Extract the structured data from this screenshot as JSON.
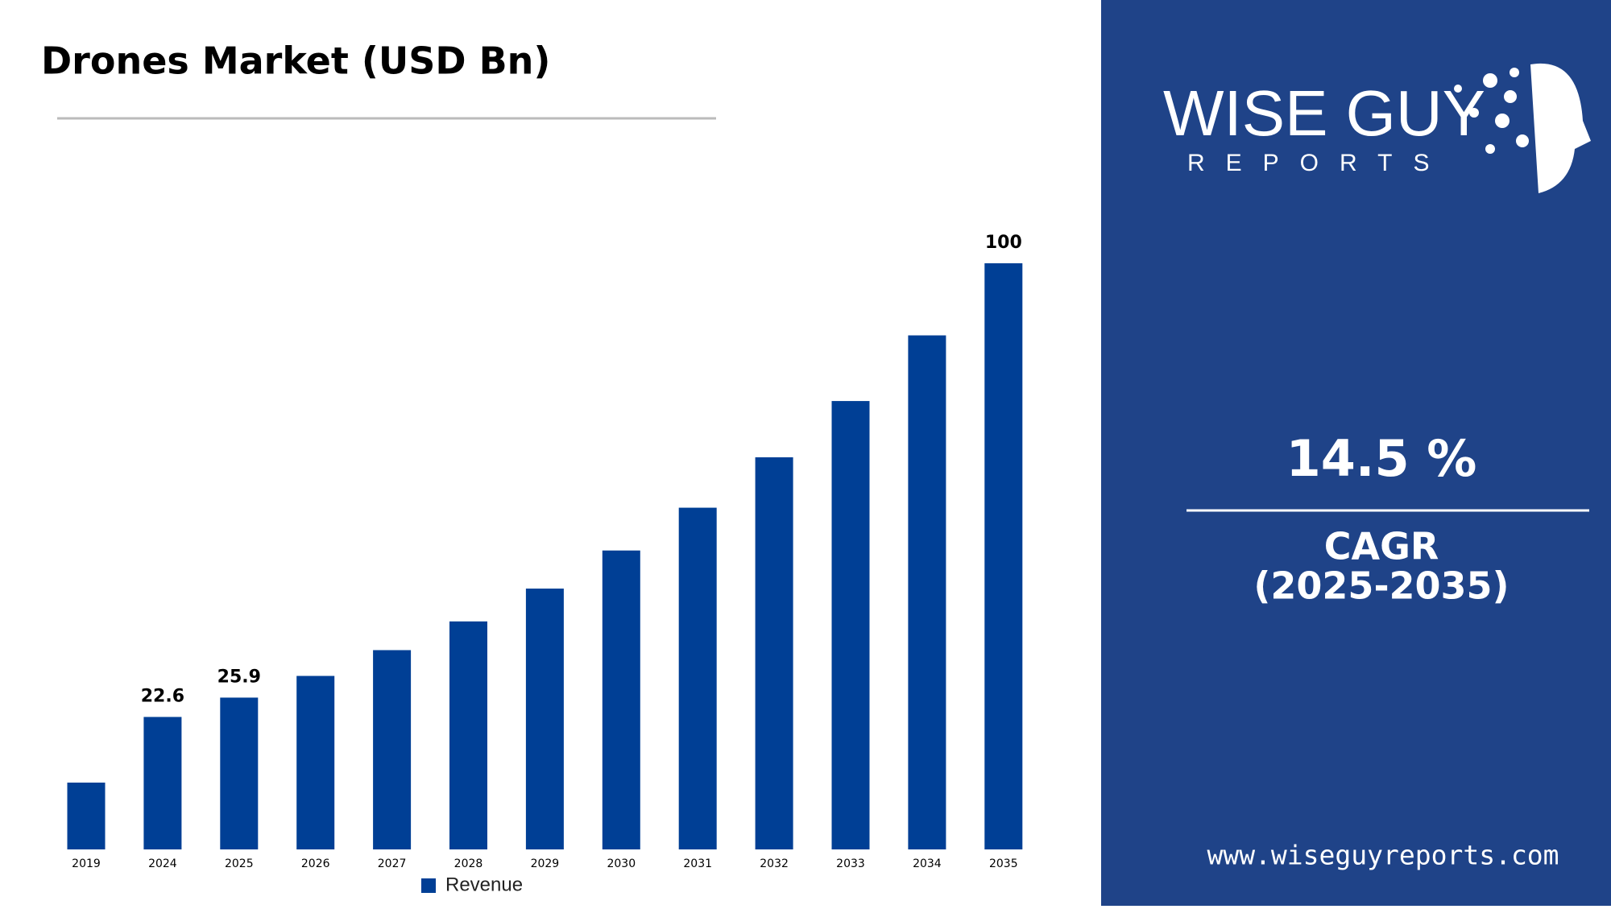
{
  "chart_data": {
    "type": "bar",
    "title": "Drones Market (USD Bn)",
    "categories": [
      "2019",
      "2024",
      "2025",
      "2026",
      "2027",
      "2028",
      "2029",
      "2030",
      "2031",
      "2032",
      "2033",
      "2034",
      "2035"
    ],
    "series": [
      {
        "name": "Revenue",
        "color": "#003f95",
        "values": [
          11.4,
          22.6,
          25.9,
          29.6,
          34.0,
          38.9,
          44.5,
          51.0,
          58.3,
          66.9,
          76.5,
          87.7,
          100
        ],
        "value_labels": [
          null,
          "22.6",
          "25.9",
          null,
          null,
          null,
          null,
          null,
          null,
          null,
          null,
          null,
          "100"
        ]
      }
    ]
  },
  "brand": {
    "name": "WISE GUY",
    "tagline": "REPORTS",
    "url": "www.wiseguyreports.com"
  },
  "cagr": {
    "value": "14.5 %",
    "label": "CAGR",
    "period": "(2025-2035)"
  }
}
